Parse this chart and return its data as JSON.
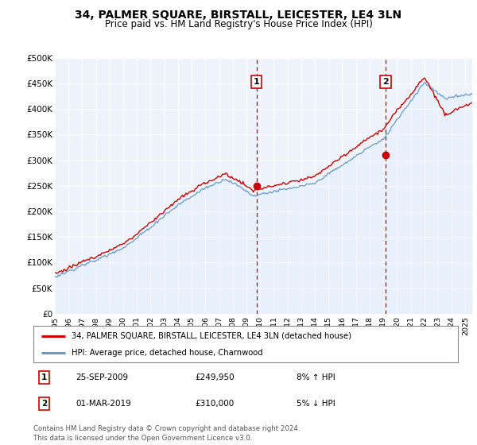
{
  "title": "34, PALMER SQUARE, BIRSTALL, LEICESTER, LE4 3LN",
  "subtitle": "Price paid vs. HM Land Registry's House Price Index (HPI)",
  "ylim": [
    0,
    500000
  ],
  "yticks": [
    0,
    50000,
    100000,
    150000,
    200000,
    250000,
    300000,
    350000,
    400000,
    450000,
    500000
  ],
  "ytick_labels": [
    "£0",
    "£50K",
    "£100K",
    "£150K",
    "£200K",
    "£250K",
    "£300K",
    "£350K",
    "£400K",
    "£450K",
    "£500K"
  ],
  "xlim_start": 1995.0,
  "xlim_end": 2025.5,
  "sale1_x": 2009.73,
  "sale1_y": 249950,
  "sale2_x": 2019.17,
  "sale2_y": 310000,
  "sale1_date": "25-SEP-2009",
  "sale1_price": "£249,950",
  "sale1_hpi": "8% ↑ HPI",
  "sale2_date": "01-MAR-2019",
  "sale2_price": "£310,000",
  "sale2_hpi": "5% ↓ HPI",
  "line1_color": "#cc0000",
  "line2_color": "#6699cc",
  "line2_fill_color": "#ddeeff",
  "marker_color": "#cc0000",
  "vline_color": "#cc0000",
  "box_edgecolor": "#cc0000",
  "legend_line1": "34, PALMER SQUARE, BIRSTALL, LEICESTER, LE4 3LN (detached house)",
  "legend_line2": "HPI: Average price, detached house, Charnwood",
  "footnote": "Contains HM Land Registry data © Crown copyright and database right 2024.\nThis data is licensed under the Open Government Licence v3.0.",
  "background_color": "#ffffff",
  "plot_bg_color": "#eef2fa"
}
